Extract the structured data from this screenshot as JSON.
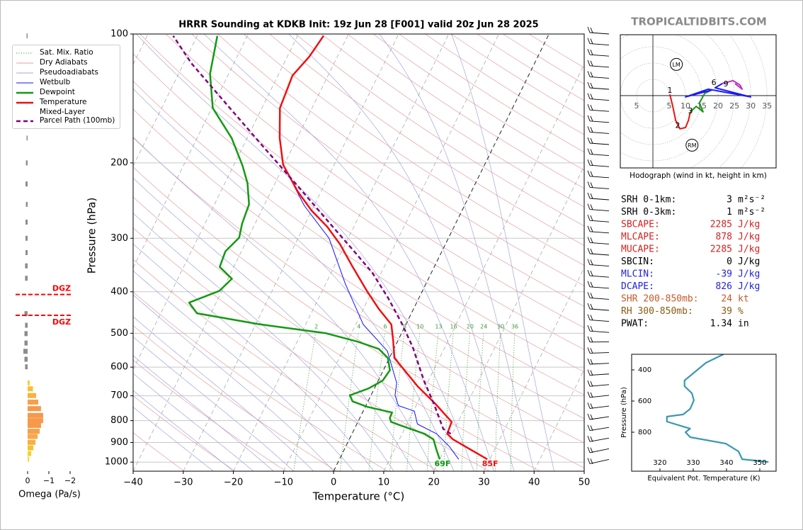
{
  "site": "TROPICALTIDBITS.COM",
  "chart_data": [
    {
      "type": "skewt",
      "title": "HRRR Sounding at KDKB Init: 19z Jun 28 [F001] valid 20z Jun 28 2025",
      "xlabel": "Temperature (°C)",
      "ylabel": "Pressure (hPa)",
      "xlim": [
        -40,
        50
      ],
      "ylim": [
        1050,
        100
      ],
      "log_y": true,
      "xticks": [
        {
          "value": -40,
          "label": "−40"
        },
        {
          "value": -30,
          "label": "−30"
        },
        {
          "value": -20,
          "label": "−20"
        },
        {
          "value": -10,
          "label": "−10"
        },
        0,
        10,
        20,
        30,
        40,
        50
      ],
      "yticks": [
        100,
        200,
        300,
        400,
        500,
        600,
        700,
        800,
        900,
        1000
      ],
      "grid": true,
      "mixing_ratio_labels": [
        2,
        4,
        6,
        8,
        10,
        13,
        16,
        20,
        24,
        30,
        36
      ],
      "reference_lines": [
        {
          "name": "Sat. Mix. Ratio",
          "color": "#3c9a3c",
          "dash": "dotted"
        },
        {
          "name": "Dry Adiabats",
          "color": "#e3a0a0"
        },
        {
          "name": "Pseudoadiabats",
          "color": "#a4a4dc"
        }
      ],
      "series": [
        {
          "name": "Wetbulb",
          "color": "#1010ff",
          "width": 1,
          "pressure": [
            985,
            920,
            859,
            815,
            760,
            738,
            698,
            653,
            550,
            477,
            383,
            300,
            252,
            226
          ],
          "values": [
            23.8,
            20.7,
            16.9,
            12.1,
            10.2,
            6.5,
            4.8,
            3.9,
            -1.1,
            -8.5,
            -16.1,
            -23.8,
            -31.9,
            -36.0
          ]
        },
        {
          "name": "Dewpoint",
          "color": "#129a12",
          "width": 2.5,
          "surface_label": "69F",
          "pressure": [
            985,
            938,
            885,
            859,
            820,
            805,
            789,
            766,
            743,
            721,
            698,
            673,
            645,
            610,
            571,
            544,
            523,
            500,
            476,
            449,
            424,
            398,
            373,
            350,
            322,
            299,
            277,
            250,
            223,
            203,
            175,
            149,
            124,
            101
          ],
          "values": [
            20.0,
            18.5,
            16.8,
            14.5,
            8.7,
            6.6,
            6.0,
            5.9,
            0.4,
            -3.1,
            -4.2,
            -1.2,
            0.9,
            1.3,
            -0.3,
            -3.0,
            -8.0,
            -15.1,
            -29.5,
            -42.8,
            -45.4,
            -40.5,
            -39.2,
            -42.8,
            -43.2,
            -41.8,
            -42.6,
            -43.1,
            -45.5,
            -48.2,
            -53.1,
            -59.8,
            -63.7,
            -66.0
          ]
        },
        {
          "name": "Temperature",
          "color": "#ee1111",
          "width": 2.5,
          "surface_label": "85F",
          "pressure": [
            985,
            885,
            859,
            805,
            731,
            665,
            571,
            519,
            477,
            438,
            398,
            348,
            310,
            282,
            258,
            233,
            202,
            175,
            149,
            125,
            113,
            101
          ],
          "values": [
            29.5,
            20.7,
            19.0,
            18.7,
            13.7,
            8.4,
            1.0,
            -1.0,
            -2.9,
            -7.0,
            -11.1,
            -16.5,
            -21.0,
            -25.3,
            -30.1,
            -34.7,
            -40.2,
            -43.5,
            -46.4,
            -47.1,
            -45.6,
            -44.8
          ]
        },
        {
          "name": "Mixed-Layer\nParcel Path (100mb)",
          "color": "#800080",
          "width": 2.5,
          "dash": "dashed",
          "pressure": [
            859,
            836,
            731,
            647,
            539,
            472,
            413,
            361,
            322,
            282,
            226,
            182,
            146,
            117,
            101
          ],
          "values": [
            19.7,
            17.7,
            13.4,
            9.2,
            3.6,
            -1.1,
            -6.2,
            -11.8,
            -17.5,
            -24.2,
            -35.3,
            -46.3,
            -57.4,
            -68.5,
            -74.8
          ]
        }
      ]
    },
    {
      "type": "bar",
      "orientation": "horizontal",
      "xlabel": "Omega (Pa/s)",
      "xlim": [
        0.5,
        -2.1
      ],
      "ylim": [
        1050,
        100
      ],
      "log_y": true,
      "xticks": [
        0,
        {
          "value": -1,
          "label": "−1"
        },
        {
          "value": -2,
          "label": "−2"
        }
      ],
      "pressure": [
        101,
        147,
        175,
        200,
        224,
        250,
        275,
        300,
        324,
        348,
        372,
        450,
        479,
        501,
        527,
        551,
        575,
        599,
        653,
        674,
        699,
        724,
        750,
        778,
        800,
        821,
        847,
        871,
        899,
        926,
        955,
        984
      ],
      "values": [
        0.05,
        0.05,
        0.05,
        0.08,
        0.1,
        0.08,
        0.1,
        0.1,
        0.1,
        0.12,
        0.12,
        0.15,
        0.12,
        0.15,
        0.15,
        0.2,
        0.15,
        0.12,
        -0.1,
        -0.25,
        -0.4,
        -0.5,
        -0.63,
        -0.73,
        -0.73,
        -0.63,
        -0.57,
        -0.47,
        -0.37,
        -0.27,
        -0.17,
        -0.07
      ],
      "colors": [
        "#8c8c8c",
        "#8c8c8c",
        "#8c8c8c",
        "#8c8c8c",
        "#8c8c8c",
        "#8c8c8c",
        "#8c8c8c",
        "#8c8c8c",
        "#8c8c8c",
        "#8c8c8c",
        "#8c8c8c",
        "#8c8c8c",
        "#8c8c8c",
        "#8c8c8c",
        "#8c8c8c",
        "#8c8c8c",
        "#8c8c8c",
        "#8c8c8c",
        "#f8d030",
        "#f8c030",
        "#f8b040",
        "#f7a04a",
        "#f7984a",
        "#f7984a",
        "#f7984a",
        "#f7984a",
        "#f7a04a",
        "#f7a84a",
        "#f8b040",
        "#f8c030",
        "#f8d030",
        "#f8d830"
      ],
      "annotations": [
        {
          "text": "DGZ",
          "pressure": 406,
          "color": "#ff0000"
        },
        {
          "text": "DGZ",
          "pressure": 454,
          "color": "#ff0000"
        }
      ]
    },
    {
      "type": "hodograph",
      "caption": "Hodograph (wind in kt, height in km)",
      "xlim": [
        -10,
        37.8
      ],
      "ylim": [
        -22.2,
        18.7
      ],
      "xticks": [
        {
          "value": -5,
          "label": "5"
        },
        5,
        10,
        15,
        20,
        25,
        30,
        35
      ],
      "series": [
        {
          "color": "#ee1111",
          "u": [
            5.2,
            6.1,
            7.0,
            8.3,
            10.0,
            10.9,
            11.5
          ],
          "v": [
            0.4,
            -3.3,
            -7.6,
            -10.2,
            -9.8,
            -7.6,
            -5.0
          ]
        },
        {
          "color": "#129a12",
          "u": [
            11.5,
            13.3,
            15.4,
            14.3,
            15.9,
            18.0
          ],
          "v": [
            -5.0,
            -3.3,
            -5.0,
            -2.2,
            0.7,
            1.7
          ]
        },
        {
          "color": "#1a1aff",
          "u": [
            18.0,
            10.0,
            17.0,
            30.0,
            19.1,
            21.3
          ],
          "v": [
            1.7,
            -0.4,
            2.0,
            -0.4,
            2.4,
            3.7
          ]
        },
        {
          "color": "#c030c0",
          "u": [
            21.3,
            24.6,
            26.7,
            27.4,
            25.2
          ],
          "v": [
            3.7,
            4.6,
            3.3,
            2.0,
            3.7
          ]
        }
      ],
      "height_labels": [
        {
          "text": "1",
          "u": 5.2,
          "v": 1.5
        },
        {
          "text": "2",
          "u": 7.6,
          "v": -9.3
        },
        {
          "text": "3",
          "u": 11.5,
          "v": -4.8
        },
        {
          "text": "6",
          "u": 18.7,
          "v": 3.9
        },
        {
          "text": "9",
          "u": 22.4,
          "v": 3.5
        }
      ],
      "storm_motion": [
        {
          "text": "LM",
          "u": 7.2,
          "v": 9.6
        },
        {
          "text": "RM",
          "u": 12.0,
          "v": -15.2
        }
      ]
    },
    {
      "type": "line",
      "xlabel": "Equivalent Pot. Temperature (K)",
      "ylabel": "Pressure (hPa)",
      "xlim": [
        311.5,
        354.9
      ],
      "ylim": [
        1050,
        300
      ],
      "xticks": [
        320,
        330,
        340,
        350
      ],
      "yticks": [
        400,
        600,
        800
      ],
      "color": "#3a98b0",
      "pressure": [
        300,
        355,
        468,
        505,
        550,
        595,
        650,
        686,
        700,
        732,
        764,
        777,
        800,
        832,
        873,
        923,
        973,
        991
      ],
      "values": [
        339.1,
        333.8,
        327.4,
        327.4,
        329.6,
        330.2,
        329.1,
        327.0,
        322.1,
        322.1,
        327.0,
        329.1,
        327.7,
        329.1,
        339.8,
        343.6,
        344.7,
        352.6
      ]
    }
  ],
  "parameters": [
    {
      "label": "SRH 0-1km:",
      "value": 3,
      "unit": "m²s⁻²",
      "color": "#000000"
    },
    {
      "label": "SRH 0-3km:",
      "value": 1,
      "unit": "m²s⁻²",
      "color": "#000000"
    },
    {
      "label": "SBCAPE:",
      "value": 2285,
      "unit": "J/kg",
      "color": "#d62020"
    },
    {
      "label": "MLCAPE:",
      "value": 878,
      "unit": "J/kg",
      "color": "#d62020"
    },
    {
      "label": "MUCAPE:",
      "value": 2285,
      "unit": "J/kg",
      "color": "#d62020"
    },
    {
      "label": "SBCIN:",
      "value": 0,
      "unit": "J/kg",
      "color": "#000000"
    },
    {
      "label": "MLCIN:",
      "value": -39,
      "unit": "J/kg",
      "color": "#2222dd"
    },
    {
      "label": "DCAPE:",
      "value": 826,
      "unit": "J/kg",
      "color": "#2222dd"
    },
    {
      "label": "SHR 200-850mb:",
      "value": 24,
      "unit": "kt",
      "color": "#c8582a"
    },
    {
      "label": "RH 300-850mb:",
      "value": 39,
      "unit": "%",
      "color": "#8b5a14"
    },
    {
      "label": "PWAT:",
      "value": 1.34,
      "unit": "in",
      "color": "#000000"
    }
  ]
}
